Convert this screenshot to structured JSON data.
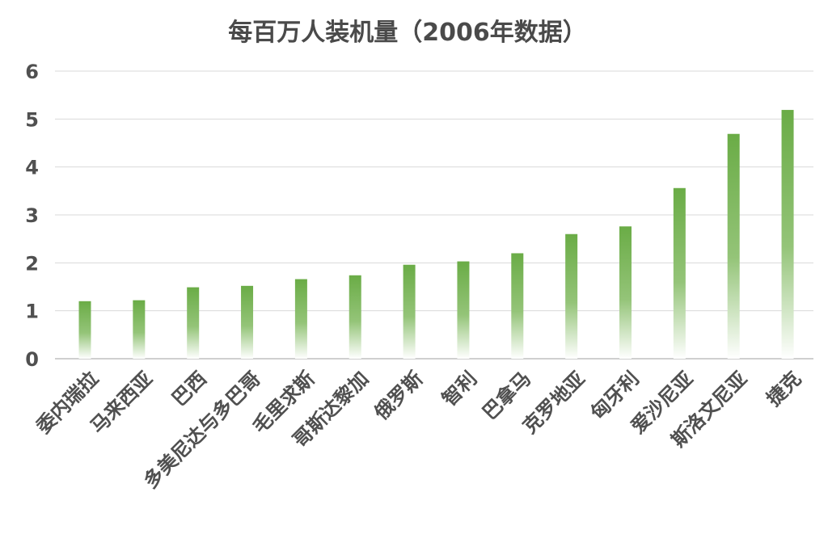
{
  "chart_data": {
    "type": "bar",
    "title": "每百万人装机量（2006年数据）",
    "xlabel": "",
    "ylabel": "",
    "categories": [
      "委内瑞拉",
      "马来西亚",
      "巴西",
      "多美尼达与多巴哥",
      "毛里求斯",
      "哥斯达黎加",
      "俄罗斯",
      "智利",
      "巴拿马",
      "克罗地亚",
      "匈牙利",
      "爱沙尼亚",
      "斯洛文尼亚",
      "捷克"
    ],
    "values": [
      1.2,
      1.22,
      1.49,
      1.52,
      1.66,
      1.74,
      1.96,
      2.03,
      2.2,
      2.6,
      2.76,
      3.56,
      4.69,
      5.19
    ],
    "ylim": [
      0,
      6
    ],
    "yticks": [
      "0",
      "1",
      "2",
      "3",
      "4",
      "5",
      "6"
    ],
    "grid": true,
    "legend": "none",
    "colors": {
      "bar_top": "#6aac46",
      "bar_bottom": "#ffffff",
      "title": "#4a4a4a",
      "ticks": "#505050",
      "grid": "#d9d9d9"
    }
  }
}
